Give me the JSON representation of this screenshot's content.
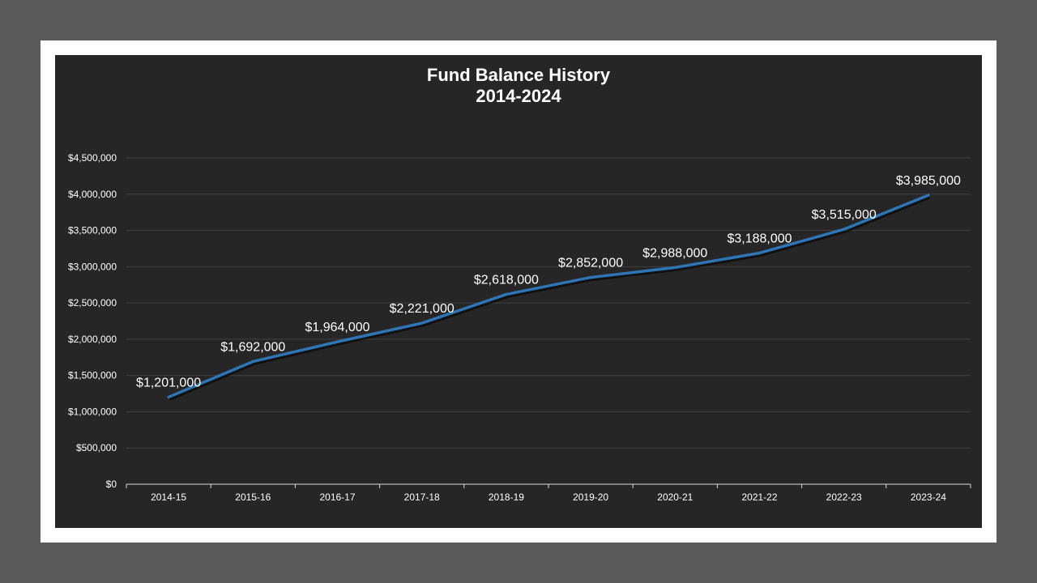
{
  "chart_data": {
    "type": "line",
    "title": "Fund Balance History",
    "subtitle": "2014-2024",
    "xlabel": "",
    "ylabel": "",
    "categories": [
      "2014-15",
      "2015-16",
      "2016-17",
      "2017-18",
      "2018-19",
      "2019-20",
      "2020-21",
      "2021-22",
      "2022-23",
      "2023-24"
    ],
    "series": [
      {
        "values": [
          1201000,
          1692000,
          1964000,
          2221000,
          2618000,
          2852000,
          2988000,
          3188000,
          3515000,
          3985000
        ],
        "data_labels": [
          "$1,201,000",
          "$1,692,000",
          "$1,964,000",
          "$2,221,000",
          "$2,618,000",
          "$2,852,000",
          "$2,988,000",
          "$3,188,000",
          "$3,515,000",
          "$3,985,000"
        ]
      }
    ],
    "ylim": [
      0,
      4500000
    ],
    "y_ticks": [
      0,
      500000,
      1000000,
      1500000,
      2000000,
      2500000,
      3000000,
      3500000,
      4000000,
      4500000
    ],
    "y_tick_labels": [
      "$0",
      "$500,000",
      "$1,000,000",
      "$1,500,000",
      "$2,000,000",
      "$2,500,000",
      "$3,000,000",
      "$3,500,000",
      "$4,000,000",
      "$4,500,000"
    ],
    "grid": true,
    "legend": "none",
    "colors": {
      "line": "#2e75b6",
      "background": "#262626",
      "frame": "#ffffff",
      "page": "#5a5a5a",
      "gridline": "#404040",
      "text": "#ffffff"
    }
  }
}
